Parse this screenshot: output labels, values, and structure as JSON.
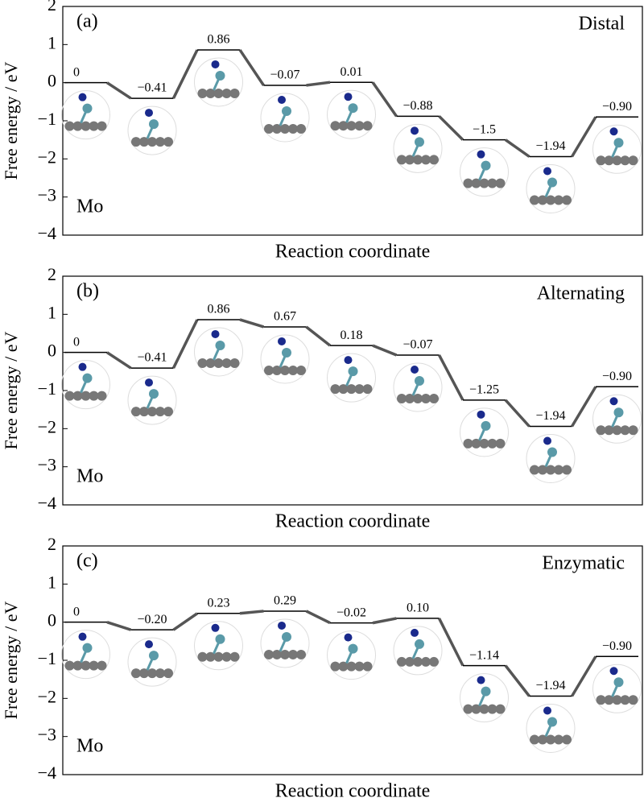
{
  "chart_data": [
    {
      "type": "step",
      "panel_label": "(a)",
      "title": "Distal",
      "annotation": "Mo",
      "xlabel": "Reaction coordinate",
      "ylabel": "Free energy / eV",
      "values": [
        0,
        -0.41,
        0.86,
        -0.07,
        0.01,
        -0.88,
        -1.5,
        -1.94,
        -0.9
      ],
      "value_labels": [
        "0",
        "−0.41",
        "0.86",
        "−0.07",
        "0.01",
        "−0.88",
        "−1.5",
        "−1.94",
        "−0.90"
      ],
      "ylim": [
        -4,
        2
      ],
      "yticks": [
        {
          "value": -4,
          "label": "−4"
        },
        {
          "value": -3,
          "label": "−3"
        },
        {
          "value": -2,
          "label": "−2"
        },
        {
          "value": -1,
          "label": "−1"
        },
        0,
        1,
        2
      ],
      "color": "#000000",
      "connector_color": "#555555"
    },
    {
      "type": "step",
      "panel_label": "(b)",
      "title": "Alternating",
      "annotation": "Mo",
      "xlabel": "Reaction coordinate",
      "ylabel": "Free energy / eV",
      "values": [
        0,
        -0.41,
        0.86,
        0.67,
        0.18,
        -0.07,
        -1.25,
        -1.94,
        -0.9
      ],
      "value_labels": [
        "0",
        "−0.41",
        "0.86",
        "0.67",
        "0.18",
        "−0.07",
        "−1.25",
        "−1.94",
        "−0.90"
      ],
      "ylim": [
        -4,
        2
      ],
      "yticks": [
        {
          "value": -4,
          "label": "−4"
        },
        {
          "value": -3,
          "label": "−3"
        },
        {
          "value": -2,
          "label": "−2"
        },
        {
          "value": -1,
          "label": "−1"
        },
        0,
        1,
        2
      ],
      "color": "#000000",
      "connector_color": "#555555"
    },
    {
      "type": "step",
      "panel_label": "(c)",
      "title": "Enzymatic",
      "annotation": "Mo",
      "xlabel": "Reaction coordinate",
      "ylabel": "Free energy / eV",
      "values": [
        0,
        -0.2,
        0.23,
        0.29,
        -0.02,
        0.1,
        -1.14,
        -1.94,
        -0.9
      ],
      "value_labels": [
        "0",
        "−0.20",
        "0.23",
        "0.29",
        "−0.02",
        "0.10",
        "−1.14",
        "−1.94",
        "−0.90"
      ],
      "ylim": [
        -4,
        2
      ],
      "yticks": [
        {
          "value": -4,
          "label": "−4"
        },
        {
          "value": -3,
          "label": "−3"
        },
        {
          "value": -2,
          "label": "−2"
        },
        {
          "value": -1,
          "label": "−1"
        },
        0,
        1,
        2
      ],
      "color": "#000000",
      "connector_color": "#555555"
    }
  ]
}
